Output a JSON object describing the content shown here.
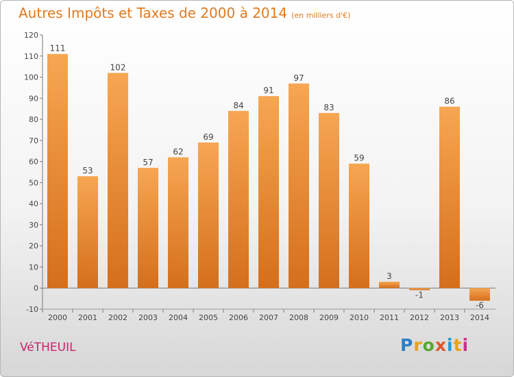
{
  "title": "Autres Impôts et Taxes de 2000 à 2014",
  "unit_label": "(en milliers d'€)",
  "commune": "VéTHEUIL",
  "brand": {
    "letters": [
      "P",
      "r",
      "o",
      "x",
      "i",
      "t",
      "i"
    ],
    "colors": [
      "#2b7fc6",
      "#e8a21a",
      "#56a82e",
      "#e0562a",
      "#1f9ad6",
      "#e8a21a",
      "#cc2f8a"
    ]
  },
  "chart_data": {
    "type": "bar",
    "categories": [
      "2000",
      "2001",
      "2002",
      "2003",
      "2004",
      "2005",
      "2006",
      "2007",
      "2008",
      "2009",
      "2010",
      "2011",
      "2012",
      "2013",
      "2014"
    ],
    "values": [
      111,
      53,
      102,
      57,
      62,
      69,
      84,
      91,
      97,
      83,
      59,
      3,
      -1,
      86,
      -6
    ],
    "value_labels": [
      "111",
      "53",
      "102",
      "57",
      "62",
      "69",
      "84",
      "91",
      "97",
      "83",
      "59",
      "3",
      "-1",
      "86",
      "-6"
    ],
    "yticks": [
      "-10",
      "0",
      "10",
      "20",
      "30",
      "40",
      "50",
      "60",
      "70",
      "80",
      "90",
      "100",
      "110",
      "120"
    ],
    "ylim": [
      -10,
      120
    ],
    "title": "Autres Impôts et Taxes de 2000 à 2014",
    "xlabel": "",
    "ylabel": "",
    "grid": false,
    "legend": "none",
    "colors": {
      "bar_light": "#f7a652",
      "bar_dark": "#d46f1c",
      "axis": "#777777",
      "text": "#444444"
    }
  }
}
